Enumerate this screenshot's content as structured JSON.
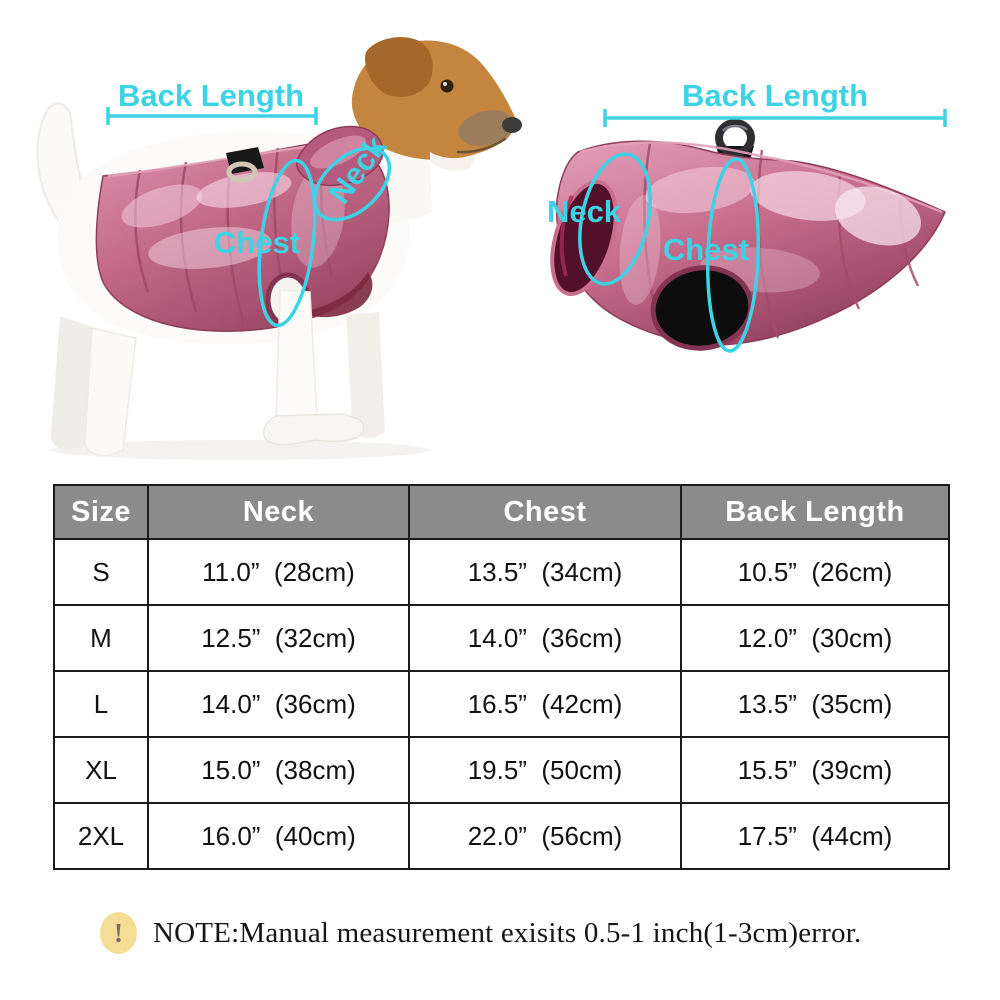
{
  "colors": {
    "annotation_cyan": "#3dd2e4",
    "table_header_bg": "#8b8b8b",
    "table_header_text": "#ffffff",
    "table_border": "#1b1b1b",
    "jacket_pink": "#c96f8d",
    "jacket_pink_dark": "#8e3d5b",
    "note_icon_bg": "#f6dd95",
    "note_icon_mark_color": "#75705e"
  },
  "figures": {
    "left": {
      "description": "dog wearing metallic pink jacket, side view",
      "back_length_label": "Back Length",
      "neck_label": "Neck",
      "chest_label": "Chest"
    },
    "right": {
      "description": "metallic pink jacket alone, side view",
      "back_length_label": "Back Length",
      "neck_label": "Neck",
      "chest_label": "Chest"
    }
  },
  "table": {
    "headers": [
      "Size",
      "Neck",
      "Chest",
      "Back Length"
    ],
    "rows": [
      [
        "S",
        "11.0”  (28cm)",
        "13.5”  (34cm)",
        "10.5”  (26cm)"
      ],
      [
        "M",
        "12.5”  (32cm)",
        "14.0”  (36cm)",
        "12.0”  (30cm)"
      ],
      [
        "L",
        "14.0”  (36cm)",
        "16.5”  (42cm)",
        "13.5”  (35cm)"
      ],
      [
        "XL",
        "15.0”  (38cm)",
        "19.5”  (50cm)",
        "15.5”  (39cm)"
      ],
      [
        "2XL",
        "16.0”  (40cm)",
        "22.0”  (56cm)",
        "17.5”  (44cm)"
      ]
    ]
  },
  "note": {
    "icon_mark": "!",
    "text": "NOTE:Manual measurement exisits 0.5-1 inch(1-3cm)error."
  }
}
